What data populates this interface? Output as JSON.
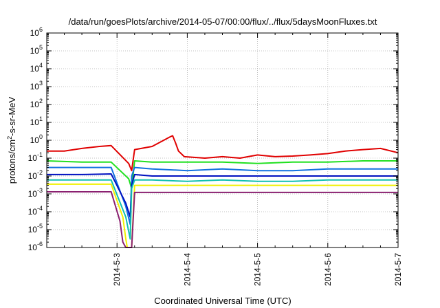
{
  "chart_data": {
    "type": "line",
    "title": "/data/run/goesPlots/archive/2014-05-07/00:00/flux/../flux/5daysMoonFluxes.txt",
    "xlabel": "Coordinated Universal Time (UTC)",
    "ylabel": "protons/cm²-s-sr-MeV",
    "ylabel_base": "protons/cm",
    "ylabel_sup": "2",
    "ylabel_rest": "-s-sr-MeV",
    "y_scale": "log",
    "ylim": [
      1e-06,
      1000000.0
    ],
    "xlim": [
      "2014-05-02 00:00",
      "2014-05-07 00:00"
    ],
    "x_ticks": [
      "2014-5-3",
      "2014-5-4",
      "2014-5-5",
      "2014-5-6",
      "2014-5-7"
    ],
    "y_ticks": [
      {
        "base": "10",
        "exp": "-6"
      },
      {
        "base": "10",
        "exp": "-5"
      },
      {
        "base": "10",
        "exp": "-4"
      },
      {
        "base": "10",
        "exp": "-3"
      },
      {
        "base": "10",
        "exp": "-2"
      },
      {
        "base": "10",
        "exp": "-1"
      },
      {
        "base": "10",
        "exp": "0"
      },
      {
        "base": "10",
        "exp": "1"
      },
      {
        "base": "10",
        "exp": "2"
      },
      {
        "base": "10",
        "exp": "3"
      },
      {
        "base": "10",
        "exp": "4"
      },
      {
        "base": "10",
        "exp": "5"
      },
      {
        "base": "10",
        "exp": "6"
      }
    ],
    "grid": true,
    "legend": "none",
    "series": [
      {
        "color": "#e00000",
        "x": [
          "2014-05-02 00:00",
          "2014-05-02 06:00",
          "2014-05-02 12:00",
          "2014-05-02 18:00",
          "2014-05-02 22:00",
          "2014-05-03 04:00",
          "2014-05-03 05:00",
          "2014-05-03 06:00",
          "2014-05-03 12:00",
          "2014-05-03 18:00",
          "2014-05-03 19:00",
          "2014-05-03 20:00",
          "2014-05-03 21:00",
          "2014-05-03 23:00",
          "2014-05-04 06:00",
          "2014-05-04 12:00",
          "2014-05-04 18:00",
          "2014-05-05 00:00",
          "2014-05-05 06:00",
          "2014-05-05 12:00",
          "2014-05-05 18:00",
          "2014-05-06 00:00",
          "2014-05-06 06:00",
          "2014-05-06 12:00",
          "2014-05-06 18:00",
          "2014-05-07 00:00"
        ],
        "y": [
          0.25,
          0.25,
          0.35,
          0.45,
          0.5,
          0.05,
          0.02,
          0.3,
          0.45,
          1.5,
          1.8,
          0.7,
          0.25,
          0.12,
          0.1,
          0.12,
          0.1,
          0.15,
          0.12,
          0.13,
          0.15,
          0.18,
          0.25,
          0.3,
          0.35,
          0.2
        ]
      },
      {
        "color": "#20e020",
        "x": [
          "2014-05-02 00:00",
          "2014-05-02 12:00",
          "2014-05-02 22:00",
          "2014-05-03 04:00",
          "2014-05-03 05:00",
          "2014-05-03 06:00",
          "2014-05-03 12:00",
          "2014-05-04 00:00",
          "2014-05-04 12:00",
          "2014-05-05 00:00",
          "2014-05-05 12:00",
          "2014-05-06 00:00",
          "2014-05-06 12:00",
          "2014-05-07 00:00"
        ],
        "y": [
          0.07,
          0.06,
          0.06,
          0.007,
          0.002,
          0.07,
          0.06,
          0.06,
          0.06,
          0.05,
          0.06,
          0.06,
          0.07,
          0.07
        ]
      },
      {
        "color": "#1070e0",
        "x": [
          "2014-05-02 00:00",
          "2014-05-02 12:00",
          "2014-05-02 22:00",
          "2014-05-03 03:00",
          "2014-05-03 04:30",
          "2014-05-03 05:00",
          "2014-05-03 06:00",
          "2014-05-03 12:00",
          "2014-05-04 00:00",
          "2014-05-04 12:00",
          "2014-05-05 00:00",
          "2014-05-05 12:00",
          "2014-05-06 00:00",
          "2014-05-06 12:00",
          "2014-05-07 00:00"
        ],
        "y": [
          0.03,
          0.03,
          0.03,
          0.0002,
          2e-05,
          0.01,
          0.03,
          0.025,
          0.02,
          0.025,
          0.02,
          0.02,
          0.025,
          0.025,
          0.025
        ]
      },
      {
        "color": "#0010c0",
        "x": [
          "2014-05-02 00:00",
          "2014-05-02 12:00",
          "2014-05-02 22:00",
          "2014-05-03 03:00",
          "2014-05-03 04:30",
          "2014-05-03 05:00",
          "2014-05-03 06:00",
          "2014-05-03 12:00",
          "2014-05-04 00:00",
          "2014-05-04 12:00",
          "2014-05-05 00:00",
          "2014-05-05 12:00",
          "2014-05-06 00:00",
          "2014-05-06 12:00",
          "2014-05-07 00:00"
        ],
        "y": [
          0.012,
          0.012,
          0.013,
          0.0003,
          5e-05,
          0.003,
          0.012,
          0.01,
          0.01,
          0.01,
          0.01,
          0.01,
          0.01,
          0.01,
          0.01
        ]
      },
      {
        "color": "#10c0b0",
        "x": [
          "2014-05-02 00:00",
          "2014-05-02 12:00",
          "2014-05-02 22:00",
          "2014-05-03 03:00",
          "2014-05-03 04:30",
          "2014-05-03 05:00",
          "2014-05-03 06:00",
          "2014-05-03 12:00",
          "2014-05-04 00:00",
          "2014-05-04 12:00",
          "2014-05-05 00:00",
          "2014-05-05 12:00",
          "2014-05-06 00:00",
          "2014-05-06 12:00",
          "2014-05-07 00:00"
        ],
        "y": [
          0.006,
          0.006,
          0.006,
          5e-05,
          3e-06,
          0.002,
          0.006,
          0.006,
          0.005,
          0.006,
          0.005,
          0.005,
          0.006,
          0.006,
          0.006
        ]
      },
      {
        "color": "#f0f000",
        "x": [
          "2014-05-02 00:00",
          "2014-05-02 12:00",
          "2014-05-02 22:00",
          "2014-05-03 02:00",
          "2014-05-03 03:00",
          "2014-05-03 03:30",
          "2014-05-03 05:00",
          "2014-05-03 06:00",
          "2014-05-03 12:00",
          "2014-05-04 00:00",
          "2014-05-04 12:00",
          "2014-05-05 00:00",
          "2014-05-05 12:00",
          "2014-05-06 00:00",
          "2014-05-06 12:00",
          "2014-05-07 00:00"
        ],
        "y": [
          0.0035,
          0.0035,
          0.0035,
          5e-05,
          3e-06,
          1e-06,
          1e-06,
          0.003,
          0.003,
          0.003,
          0.003,
          0.003,
          0.003,
          0.003,
          0.003,
          0.003
        ]
      },
      {
        "color": "#8a2070",
        "x": [
          "2014-05-02 00:00",
          "2014-05-02 12:00",
          "2014-05-02 22:00",
          "2014-05-03 01:00",
          "2014-05-03 02:00",
          "2014-05-03 03:00",
          "2014-05-03 05:00",
          "2014-05-03 06:00",
          "2014-05-03 12:00",
          "2014-05-04 00:00",
          "2014-05-04 12:00",
          "2014-05-05 00:00",
          "2014-05-05 12:00",
          "2014-05-06 00:00",
          "2014-05-06 12:00",
          "2014-05-07 00:00"
        ],
        "y": [
          0.0013,
          0.0013,
          0.0013,
          3e-05,
          2e-06,
          1e-06,
          1e-06,
          0.0012,
          0.0012,
          0.0012,
          0.0012,
          0.0012,
          0.0012,
          0.0012,
          0.0012,
          0.0012
        ]
      }
    ]
  }
}
